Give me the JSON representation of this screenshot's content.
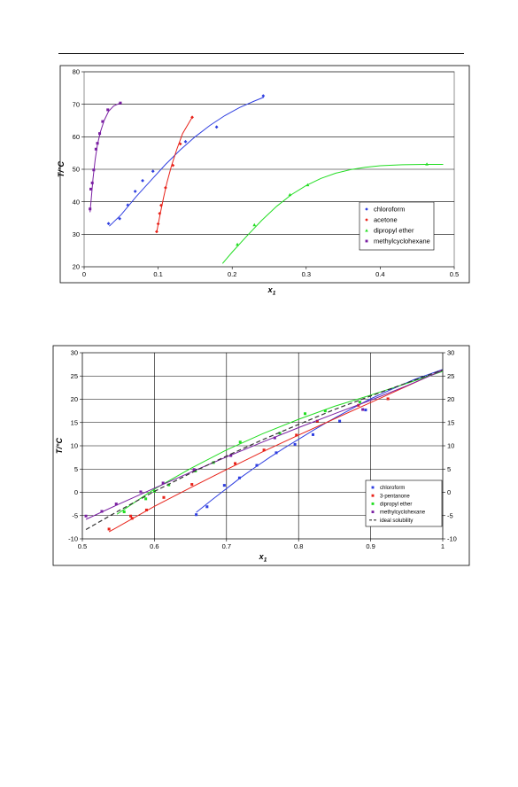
{
  "chart_data": [
    {
      "type": "scatter",
      "xlabel": "x",
      "xlabel_sub": "1",
      "ylabel": "T/°C",
      "xlim": [
        0,
        0.5
      ],
      "ylim": [
        20,
        80
      ],
      "xticks": [
        "0",
        "0.1",
        "0.2",
        "0.3",
        "0.4",
        "0.5"
      ],
      "yticks": [
        "20",
        "30",
        "40",
        "50",
        "60",
        "70",
        "80"
      ],
      "grid": "horizontal",
      "legend_position": "bottom-right",
      "series": [
        {
          "name": "chloroform",
          "color": "#2f3fe0",
          "marker": "diamond",
          "points": [
            [
              0.033,
              33.3
            ],
            [
              0.048,
              34.8
            ],
            [
              0.059,
              39.0
            ],
            [
              0.069,
              43.2
            ],
            [
              0.079,
              46.5
            ],
            [
              0.093,
              49.4
            ],
            [
              0.137,
              58.5
            ],
            [
              0.179,
              63.0
            ],
            [
              0.242,
              72.6
            ]
          ],
          "curve": [
            [
              0.034,
              32.5
            ],
            [
              0.05,
              36.0
            ],
            [
              0.07,
              41.5
            ],
            [
              0.09,
              46.5
            ],
            [
              0.11,
              51.5
            ],
            [
              0.13,
              56.0
            ],
            [
              0.15,
              60.0
            ],
            [
              0.17,
              63.5
            ],
            [
              0.19,
              66.5
            ],
            [
              0.21,
              69.0
            ],
            [
              0.23,
              71.0
            ],
            [
              0.243,
              72.2
            ]
          ]
        },
        {
          "name": "acetone",
          "color": "#e8231a",
          "marker": "diamond",
          "points": [
            [
              0.098,
              30.8
            ],
            [
              0.1,
              33.2
            ],
            [
              0.102,
              36.4
            ],
            [
              0.104,
              38.9
            ],
            [
              0.11,
              44.3
            ],
            [
              0.12,
              51.2
            ],
            [
              0.13,
              57.8
            ],
            [
              0.146,
              66.0
            ]
          ],
          "curve": [
            [
              0.098,
              30.5
            ],
            [
              0.1,
              33.0
            ],
            [
              0.103,
              36.5
            ],
            [
              0.107,
              41.0
            ],
            [
              0.112,
              46.0
            ],
            [
              0.118,
              51.0
            ],
            [
              0.125,
              56.0
            ],
            [
              0.133,
              61.0
            ],
            [
              0.146,
              66.0
            ]
          ]
        },
        {
          "name": "dipropyl ether",
          "color": "#22dd22",
          "marker": "triangle",
          "points": [
            [
              0.207,
              26.9
            ],
            [
              0.23,
              32.9
            ],
            [
              0.278,
              42.2
            ],
            [
              0.302,
              45.2
            ],
            [
              0.463,
              51.6
            ]
          ],
          "curve": [
            [
              0.187,
              21.0
            ],
            [
              0.2,
              24.5
            ],
            [
              0.22,
              29.5
            ],
            [
              0.24,
              34.3
            ],
            [
              0.26,
              38.6
            ],
            [
              0.28,
              42.2
            ],
            [
              0.3,
              45.0
            ],
            [
              0.32,
              47.2
            ],
            [
              0.34,
              48.8
            ],
            [
              0.36,
              49.9
            ],
            [
              0.38,
              50.6
            ],
            [
              0.4,
              51.1
            ],
            [
              0.43,
              51.4
            ],
            [
              0.46,
              51.5
            ],
            [
              0.485,
              51.5
            ]
          ]
        },
        {
          "name": "methylcyclohexane",
          "color": "#7a1fa2",
          "marker": "square",
          "points": [
            [
              0.008,
              37.8
            ],
            [
              0.009,
              43.9
            ],
            [
              0.011,
              45.8
            ],
            [
              0.013,
              49.8
            ],
            [
              0.016,
              56.2
            ],
            [
              0.018,
              58.0
            ],
            [
              0.021,
              61.0
            ],
            [
              0.025,
              64.7
            ],
            [
              0.032,
              68.3
            ],
            [
              0.049,
              70.4
            ]
          ],
          "curve": [
            [
              0.008,
              36.8
            ],
            [
              0.01,
              42.0
            ],
            [
              0.012,
              47.0
            ],
            [
              0.015,
              53.0
            ],
            [
              0.018,
              57.5
            ],
            [
              0.022,
              61.5
            ],
            [
              0.027,
              65.0
            ],
            [
              0.033,
              67.8
            ],
            [
              0.04,
              69.5
            ],
            [
              0.049,
              70.4
            ]
          ]
        }
      ]
    },
    {
      "type": "scatter",
      "xlabel": "x",
      "xlabel_sub": "1",
      "ylabel": "T/°C",
      "xlim": [
        0.5,
        1
      ],
      "ylim": [
        -10,
        30
      ],
      "xticks": [
        "0.5",
        "0.6",
        "0.7",
        "0.8",
        "0.9",
        "1"
      ],
      "yticks": [
        "-10",
        "-5",
        "0",
        "5",
        "10",
        "15",
        "20",
        "25",
        "30"
      ],
      "grid": "both",
      "legend_position": "bottom-right",
      "series": [
        {
          "name": "chloroform",
          "color": "#2f3fe0",
          "marker": "square",
          "points": [
            [
              0.658,
              -4.8
            ],
            [
              0.673,
              -3.1
            ],
            [
              0.697,
              1.5
            ],
            [
              0.718,
              3.1
            ],
            [
              0.742,
              5.8
            ],
            [
              0.769,
              8.5
            ],
            [
              0.795,
              10.3
            ],
            [
              0.82,
              12.4
            ],
            [
              0.857,
              15.3
            ],
            [
              0.893,
              17.7
            ]
          ],
          "curve": [
            [
              0.658,
              -4.3
            ],
            [
              0.68,
              -1.6
            ],
            [
              0.7,
              0.8
            ],
            [
              0.72,
              3.2
            ],
            [
              0.74,
              5.4
            ],
            [
              0.76,
              7.5
            ],
            [
              0.78,
              9.5
            ],
            [
              0.8,
              11.4
            ],
            [
              0.82,
              13.3
            ],
            [
              0.84,
              15.1
            ],
            [
              0.86,
              16.8
            ],
            [
              0.88,
              18.5
            ],
            [
              0.9,
              20.1
            ],
            [
              0.93,
              22.2
            ],
            [
              0.96,
              24.2
            ],
            [
              1.0,
              26.4
            ]
          ]
        },
        {
          "name": "3-pentanone",
          "color": "#e8231a",
          "marker": "square",
          "points": [
            [
              0.537,
              -7.9
            ],
            [
              0.567,
              -5.1
            ],
            [
              0.569,
              -5.6
            ],
            [
              0.589,
              -3.8
            ],
            [
              0.613,
              -1.1
            ],
            [
              0.652,
              1.7
            ],
            [
              0.712,
              6.2
            ],
            [
              0.752,
              9.1
            ],
            [
              0.797,
              12.3
            ],
            [
              0.826,
              15.3
            ],
            [
              0.883,
              18.7
            ],
            [
              0.924,
              20.1
            ]
          ],
          "curve": [
            [
              0.537,
              -8.5
            ],
            [
              0.56,
              -6.5
            ],
            [
              0.6,
              -3.0
            ],
            [
              0.65,
              1.0
            ],
            [
              0.7,
              4.9
            ],
            [
              0.75,
              8.7
            ],
            [
              0.8,
              12.3
            ],
            [
              0.85,
              15.8
            ],
            [
              0.9,
              19.3
            ],
            [
              0.95,
              22.8
            ],
            [
              1.0,
              26.3
            ]
          ]
        },
        {
          "name": "dipropyl ether",
          "color": "#22dd22",
          "marker": "square",
          "points": [
            [
              0.558,
              -4.2
            ],
            [
              0.588,
              -1.4
            ],
            [
              0.6,
              0.2
            ],
            [
              0.62,
              1.6
            ],
            [
              0.657,
              4.6
            ],
            [
              0.682,
              6.4
            ],
            [
              0.719,
              10.8
            ],
            [
              0.774,
              12.7
            ],
            [
              0.809,
              16.9
            ],
            [
              0.837,
              17.5
            ],
            [
              0.885,
              19.4
            ]
          ],
          "curve": [
            [
              0.548,
              -4.7
            ],
            [
              0.6,
              0.7
            ],
            [
              0.65,
              5.1
            ],
            [
              0.7,
              9.1
            ],
            [
              0.75,
              12.6
            ],
            [
              0.8,
              15.7
            ],
            [
              0.85,
              18.5
            ],
            [
              0.9,
              20.9
            ],
            [
              0.95,
              23.4
            ],
            [
              1.0,
              26.0
            ]
          ]
        },
        {
          "name": "methylcyclohexane",
          "color": "#7a1fa2",
          "marker": "square",
          "points": [
            [
              0.505,
              -5.1
            ],
            [
              0.527,
              -4.1
            ],
            [
              0.547,
              -2.5
            ],
            [
              0.581,
              0.1
            ],
            [
              0.612,
              2.0
            ],
            [
              0.655,
              4.9
            ],
            [
              0.706,
              7.9
            ],
            [
              0.767,
              11.7
            ],
            [
              0.889,
              17.8
            ]
          ],
          "curve": [
            [
              0.505,
              -5.8
            ],
            [
              0.55,
              -2.6
            ],
            [
              0.6,
              0.9
            ],
            [
              0.65,
              4.3
            ],
            [
              0.7,
              7.6
            ],
            [
              0.75,
              10.8
            ],
            [
              0.8,
              13.9
            ],
            [
              0.85,
              16.9
            ],
            [
              0.9,
              19.8
            ],
            [
              0.95,
              22.9
            ],
            [
              1.0,
              26.2
            ]
          ]
        },
        {
          "name": "ideal solubility",
          "color": "#333333",
          "marker": "none",
          "dashed": true,
          "curve": [
            [
              0.505,
              -8.0
            ],
            [
              0.55,
              -4.0
            ],
            [
              0.6,
              0.2
            ],
            [
              0.65,
              4.1
            ],
            [
              0.7,
              7.8
            ],
            [
              0.75,
              11.3
            ],
            [
              0.8,
              14.6
            ],
            [
              0.85,
              17.8
            ],
            [
              0.9,
              20.7
            ],
            [
              0.95,
              23.5
            ],
            [
              1.0,
              26.3
            ]
          ]
        }
      ]
    }
  ]
}
